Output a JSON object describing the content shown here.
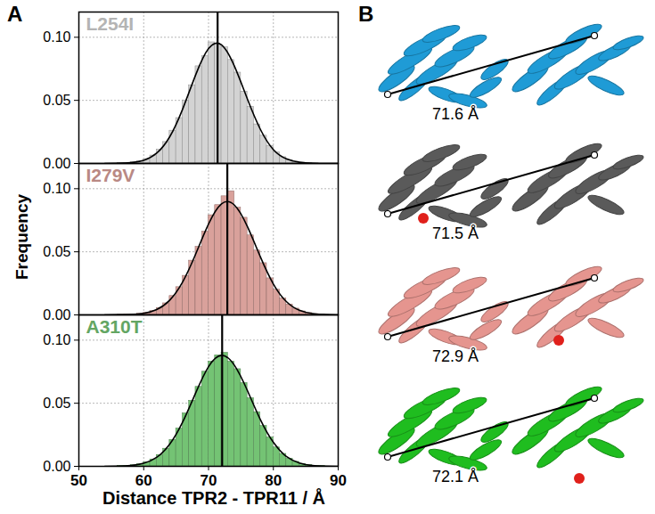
{
  "panel_labels": [
    "A",
    "B"
  ],
  "ylabel": "Frequency",
  "xlabel": "Distance TPR2 - TPR11 / Å",
  "chart_data": [
    {
      "type": "histogram",
      "title": "L254I",
      "color": "#d3d3d3",
      "bins": [
        56,
        57,
        58,
        59,
        60,
        61,
        62,
        63,
        64,
        65,
        66,
        67,
        68,
        69,
        70,
        71,
        72,
        73,
        74,
        75,
        76,
        77,
        78,
        79,
        80,
        81,
        82,
        83,
        84,
        85,
        86,
        87,
        88
      ],
      "values": [
        0.0002,
        0.0004,
        0.0009,
        0.0018,
        0.0035,
        0.0063,
        0.011,
        0.017,
        0.026,
        0.036,
        0.05,
        0.062,
        0.077,
        0.085,
        0.096,
        0.094,
        0.092,
        0.082,
        0.072,
        0.057,
        0.045,
        0.031,
        0.022,
        0.014,
        0.0088,
        0.005,
        0.0027,
        0.0014,
        0.0007,
        0.0003,
        0.0001,
        0
      ],
      "fit": {
        "x": [
          54,
          56,
          58,
          60,
          62,
          64,
          66,
          68,
          70,
          72,
          74,
          76,
          78,
          80,
          82,
          84,
          86,
          88,
          90
        ],
        "values": [
          0,
          0.0001,
          0.0006,
          0.0025,
          0.0082,
          0.021,
          0.043,
          0.07,
          0.091,
          0.094,
          0.077,
          0.051,
          0.027,
          0.011,
          0.0037,
          0.001,
          0.0002,
          0,
          0
        ]
      },
      "mean": 71.4,
      "xlim": [
        50,
        90
      ],
      "xticks": [
        50,
        60,
        70,
        80,
        90
      ],
      "ylim": [
        0,
        0.12
      ],
      "yticks": [
        {
          "value": 0,
          "label": "0.00"
        },
        {
          "value": 0.05,
          "label": "0.05"
        },
        {
          "value": 0.1,
          "label": "0.10"
        }
      ],
      "grid": true,
      "tick_labels": "y"
    },
    {
      "type": "histogram",
      "title": "I279V",
      "color": "#d9a19b",
      "bins": [
        56,
        57,
        58,
        59,
        60,
        61,
        62,
        63,
        64,
        65,
        66,
        67,
        68,
        69,
        70,
        71,
        72,
        73,
        74,
        75,
        76,
        77,
        78,
        79,
        80,
        81,
        82,
        83,
        84,
        85,
        86,
        87,
        88
      ],
      "values": [
        0.0001,
        0.0002,
        0.0004,
        0.0009,
        0.0017,
        0.0031,
        0.0055,
        0.0092,
        0.015,
        0.022,
        0.031,
        0.043,
        0.054,
        0.066,
        0.079,
        0.087,
        0.094,
        0.098,
        0.085,
        0.077,
        0.063,
        0.051,
        0.041,
        0.029,
        0.02,
        0.013,
        0.0083,
        0.005,
        0.0028,
        0.0015,
        0.0007,
        0.0003
      ],
      "fit": {
        "x": [
          54,
          56,
          58,
          60,
          62,
          64,
          66,
          68,
          70,
          72,
          74,
          76,
          78,
          80,
          82,
          84,
          86,
          88,
          90
        ],
        "values": [
          0,
          0.0001,
          0.0003,
          0.0012,
          0.0042,
          0.0116,
          0.026,
          0.048,
          0.072,
          0.088,
          0.087,
          0.07,
          0.046,
          0.0245,
          0.0106,
          0.0037,
          0.0011,
          0.0003,
          0
        ]
      },
      "mean": 72.9,
      "xlim": [
        50,
        90
      ],
      "xticks": [
        50,
        60,
        70,
        80,
        90
      ],
      "ylim": [
        0,
        0.12
      ],
      "yticks": [
        {
          "value": 0,
          "label": "0.00"
        },
        {
          "value": 0.05,
          "label": "0.05"
        },
        {
          "value": 0.1,
          "label": "0.10"
        }
      ],
      "grid": true,
      "tick_labels": "y"
    },
    {
      "type": "histogram",
      "title": "A310T",
      "color": "#74c374",
      "bins": [
        56,
        57,
        58,
        59,
        60,
        61,
        62,
        63,
        64,
        65,
        66,
        67,
        68,
        69,
        70,
        71,
        72,
        73,
        74,
        75,
        76,
        77,
        78,
        79,
        80,
        81,
        82,
        83,
        84,
        85,
        86,
        87,
        88
      ],
      "values": [
        0.0002,
        0.0005,
        0.0009,
        0.0017,
        0.0032,
        0.0055,
        0.009,
        0.014,
        0.021,
        0.03,
        0.042,
        0.052,
        0.063,
        0.075,
        0.083,
        0.088,
        0.09,
        0.083,
        0.077,
        0.066,
        0.054,
        0.043,
        0.032,
        0.023,
        0.015,
        0.0099,
        0.0061,
        0.0036,
        0.002,
        0.001,
        0.0005,
        0.0002
      ],
      "fit": {
        "x": [
          54,
          56,
          58,
          60,
          62,
          64,
          66,
          68,
          70,
          72,
          74,
          76,
          78,
          80,
          82,
          84,
          86,
          88,
          90
        ],
        "values": [
          0,
          0.0001,
          0.0006,
          0.0024,
          0.0071,
          0.0174,
          0.035,
          0.058,
          0.079,
          0.088,
          0.08,
          0.06,
          0.037,
          0.019,
          0.0078,
          0.0027,
          0.0007,
          0.0002,
          0
        ]
      },
      "mean": 72.1,
      "xlim": [
        50,
        90
      ],
      "xticks": [
        50,
        60,
        70,
        80,
        90
      ],
      "ylim": [
        0,
        0.12
      ],
      "yticks": [
        {
          "value": 0,
          "label": "0.00"
        },
        {
          "value": 0.05,
          "label": "0.05"
        },
        {
          "value": 0.1,
          "label": "0.10"
        }
      ],
      "grid": true
    }
  ],
  "structures": [
    {
      "color": "#1f9bd6",
      "distance_label": "71.6 Å"
    },
    {
      "color": "#5a5a5a",
      "distance_label": "71.5 Å"
    },
    {
      "color": "#e5958f",
      "distance_label": "72.9 Å"
    },
    {
      "color": "#1fbd1f",
      "distance_label": "72.1 Å"
    }
  ]
}
